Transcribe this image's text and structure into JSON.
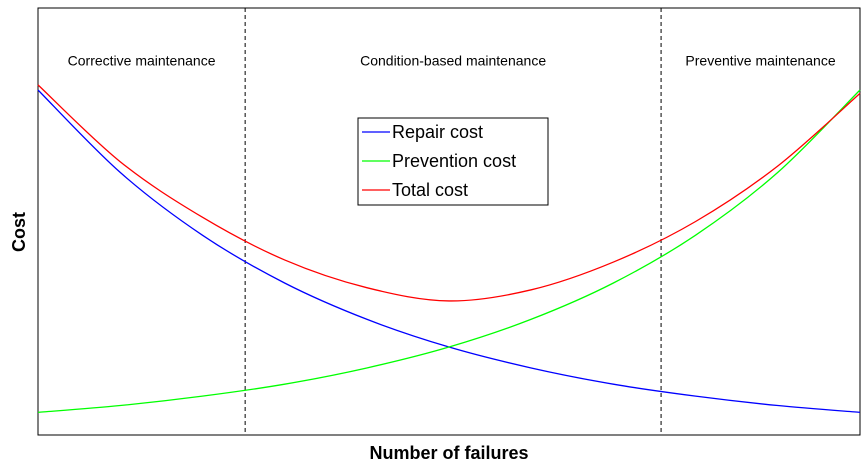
{
  "chart_data": {
    "type": "line",
    "xlabel": "Number of failures",
    "ylabel": "Cost",
    "x": [
      0,
      10,
      20,
      30,
      40,
      50,
      60,
      70,
      80,
      90,
      100
    ],
    "xlim": [
      0,
      100
    ],
    "ylim": [
      0,
      100
    ],
    "series": [
      {
        "name": "Repair cost",
        "color": "#0000ff",
        "values": [
          80.8,
          61.5,
          46.8,
          35.6,
          27.1,
          20.6,
          15.7,
          11.9,
          9.1,
          6.9,
          5.3
        ]
      },
      {
        "name": "Prevention cost",
        "color": "#00ff00",
        "values": [
          5.3,
          6.9,
          9.1,
          11.9,
          15.7,
          20.6,
          27.1,
          35.6,
          46.8,
          61.5,
          80.8
        ]
      },
      {
        "name": "Total cost",
        "color": "#ff0000",
        "values": [
          82,
          64,
          51,
          41,
          34.5,
          31.4,
          34,
          40.5,
          50,
          63,
          80
        ]
      }
    ],
    "regions": [
      "Corrective maintenance",
      "Condition-based maintenance",
      "Preventive maintenance"
    ],
    "region_boundaries": [
      25.2,
      75.8
    ]
  }
}
